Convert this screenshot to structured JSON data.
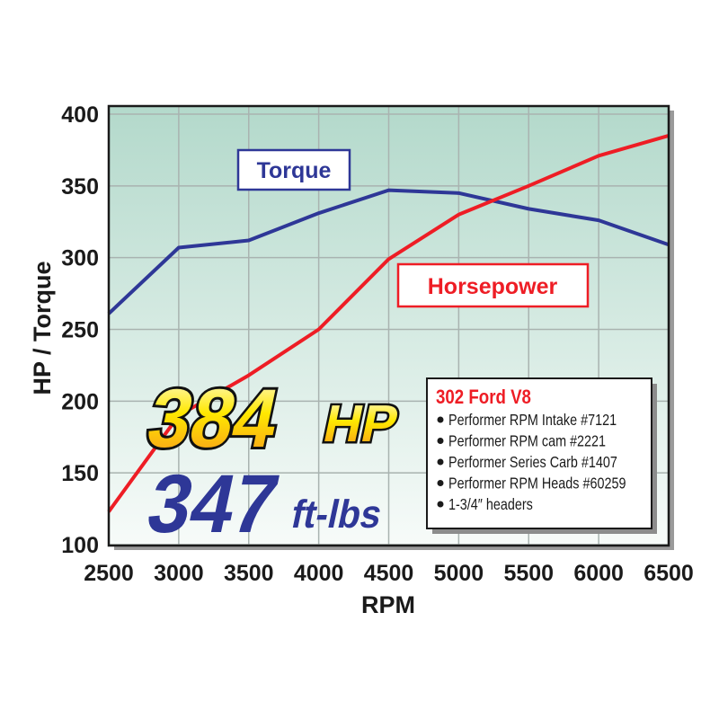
{
  "chart_data": {
    "type": "line",
    "xlabel": "RPM",
    "ylabel": "HP / Torque",
    "xlim": [
      2500,
      6500
    ],
    "ylim": [
      100,
      400
    ],
    "xticks": [
      "2500",
      "3000",
      "3500",
      "4000",
      "4500",
      "5000",
      "5500",
      "6000",
      "6500"
    ],
    "yticks": [
      "100",
      "150",
      "200",
      "250",
      "300",
      "350",
      "400"
    ],
    "grid": true,
    "x": [
      2500,
      3000,
      3500,
      4000,
      4500,
      5000,
      5500,
      6000,
      6500
    ],
    "series": [
      {
        "name": "Torque",
        "color": "#2e3797",
        "values": [
          261,
          307,
          312,
          331,
          347,
          345,
          334,
          326,
          309
        ]
      },
      {
        "name": "Horsepower",
        "color": "#ee1d25",
        "values": [
          123,
          190,
          218,
          250,
          299,
          330,
          350,
          371,
          385
        ]
      }
    ],
    "annotations": {
      "hp_number": "384",
      "hp_unit": "HP",
      "torque_number": "347",
      "torque_unit": "ft-lbs"
    },
    "info_box": {
      "title": "302 Ford V8",
      "items": [
        "Performer RPM Intake #7121",
        "Performer RPM cam #2221",
        "Performer Series Carb #1407",
        "Performer RPM Heads #60259",
        "1-3/4″ headers"
      ]
    },
    "background_gradient": [
      "#b3d9cb",
      "#f7fbf9"
    ]
  }
}
